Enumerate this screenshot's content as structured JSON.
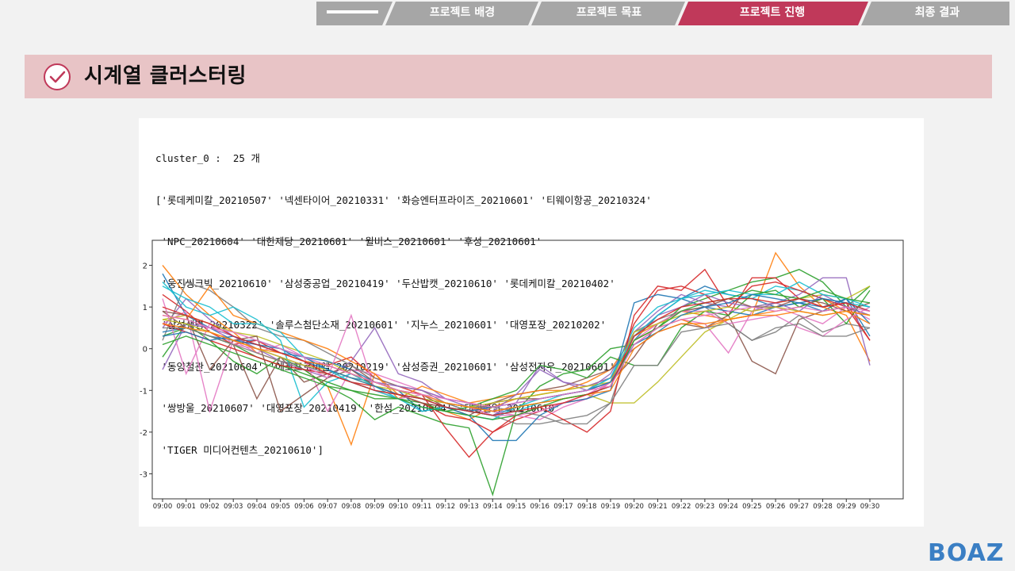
{
  "nav": {
    "tabs": [
      {
        "label": "",
        "state": "home"
      },
      {
        "label": "프로젝트 배경",
        "state": "inactive"
      },
      {
        "label": "프로젝트 목표",
        "state": "inactive"
      },
      {
        "label": "프로젝트 진행",
        "state": "active"
      },
      {
        "label": "최종 결과",
        "state": "inactive"
      }
    ],
    "colors": {
      "inactive": "#a6a6a6",
      "active": "#c0395a"
    }
  },
  "header": {
    "title": "시계열 클러스터링",
    "icon": "check-circle-icon",
    "band_color": "#e8c4c6",
    "icon_color": "#c0395a"
  },
  "cluster": {
    "heading": "cluster_0 :  25 개",
    "members_lines": [
      "['롯데케미칼_20210507' '넥센타이어_20210331' '화승엔터프라이즈_20210601' '티웨이항공_20210324'",
      " 'NPC_20210604' '대한제당_20210601' '윌비스_20210601' '후성_20210601'",
      " '웅진씽크빅_20210610' '삼성중공업_20210419' '두산밥캣_20210610' '롯데케미칼_20210402'",
      " '삼성생명_20210322' '솔루스첨단소재_20210601' '지누스_20210601' '대영포장_20210202'",
      " '동양철관_20210604' '에코프로비엠_20210219' '삼성증권_20210601' '삼성전자우_20210601'",
      " '쌍방울_20210607' '대영포장_20210419' '한섬_20210604' '태경산업_20210610'",
      " 'TIGER 미디어컨텐츠_20210610']"
    ]
  },
  "chart_data": {
    "type": "line",
    "title": "",
    "xlabel": "",
    "ylabel": "",
    "x": [
      "09:00",
      "09:01",
      "09:02",
      "09:03",
      "09:04",
      "09:05",
      "09:06",
      "09:07",
      "09:08",
      "09:09",
      "09:10",
      "09:11",
      "09:12",
      "09:13",
      "09:14",
      "09:15",
      "09:16",
      "09:17",
      "09:18",
      "09:19",
      "09:20",
      "09:21",
      "09:22",
      "09:23",
      "09:24",
      "09:25",
      "09:26",
      "09:27",
      "09:28",
      "09:29",
      "09:30"
    ],
    "ylim": [
      -3.6,
      2.6
    ],
    "yticks": [
      -3,
      -2,
      -1,
      0,
      1,
      2
    ],
    "grid": false,
    "series": [
      {
        "color": "#1f77b4",
        "values": [
          1.8,
          0.8,
          0.5,
          0.2,
          0.2,
          0.0,
          -0.3,
          -0.5,
          -0.7,
          -0.8,
          -1.0,
          -1.2,
          -1.3,
          -1.5,
          -1.6,
          -1.4,
          -1.3,
          -1.2,
          -1.1,
          -0.9,
          0.2,
          0.8,
          1.2,
          1.5,
          1.3,
          1.2,
          1.0,
          1.1,
          0.9,
          1.2,
          0.3
        ]
      },
      {
        "color": "#ff7f0e",
        "values": [
          2.0,
          1.3,
          0.8,
          0.4,
          -0.1,
          -0.3,
          -0.5,
          -0.9,
          -2.3,
          -0.6,
          -1.1,
          -1.3,
          -1.5,
          -1.7,
          -1.4,
          -1.2,
          -1.1,
          -1.0,
          -0.8,
          -0.5,
          0.3,
          0.6,
          0.9,
          0.8,
          0.7,
          0.8,
          2.3,
          1.5,
          1.0,
          0.8,
          -0.3
        ]
      },
      {
        "color": "#2ca02c",
        "values": [
          -0.2,
          0.6,
          0.2,
          -0.3,
          -0.6,
          -0.2,
          -0.5,
          -0.9,
          -1.2,
          -1.7,
          -1.4,
          -1.6,
          -1.8,
          -1.9,
          -3.5,
          -1.5,
          -0.9,
          -0.6,
          -0.5,
          0.0,
          0.1,
          0.5,
          1.0,
          1.2,
          1.4,
          1.6,
          1.7,
          1.9,
          1.6,
          1.0,
          1.5
        ]
      },
      {
        "color": "#d62728",
        "values": [
          1.3,
          0.9,
          0.4,
          0.1,
          0.2,
          -0.1,
          -0.3,
          -0.4,
          -0.2,
          -0.7,
          -0.9,
          -1.1,
          -1.9,
          -2.6,
          -2.0,
          -1.7,
          -1.5,
          -1.3,
          -1.2,
          -0.8,
          0.6,
          1.4,
          1.5,
          1.3,
          0.8,
          1.7,
          1.7,
          1.2,
          1.0,
          1.1,
          0.2
        ]
      },
      {
        "color": "#9467bd",
        "values": [
          0.5,
          1.2,
          0.7,
          0.3,
          0.0,
          -0.3,
          -0.5,
          -0.7,
          -0.3,
          0.5,
          -0.6,
          -0.8,
          -1.2,
          -1.4,
          -1.6,
          -1.3,
          -0.4,
          -0.8,
          -1.0,
          -0.6,
          0.4,
          0.9,
          1.3,
          1.1,
          1.0,
          0.9,
          1.1,
          1.3,
          1.7,
          1.7,
          -0.4
        ]
      },
      {
        "color": "#8c564b",
        "values": [
          0.9,
          0.5,
          0.3,
          0.1,
          -1.2,
          -0.2,
          -0.8,
          -0.6,
          -0.4,
          -0.8,
          -1.0,
          -1.1,
          -1.4,
          -1.6,
          -1.3,
          -1.1,
          -1.0,
          -0.9,
          -0.7,
          -0.5,
          0.0,
          0.4,
          0.6,
          0.5,
          0.8,
          -0.3,
          -0.6,
          0.7,
          0.9,
          1.0,
          0.8
        ]
      },
      {
        "color": "#e377c2",
        "values": [
          0.6,
          0.9,
          -1.5,
          0.2,
          -0.1,
          0.1,
          -0.2,
          -1.5,
          -0.5,
          -0.6,
          -0.8,
          -1.0,
          -1.2,
          -1.3,
          -1.5,
          -1.6,
          -1.7,
          -1.4,
          -1.2,
          -0.8,
          0.1,
          0.5,
          0.7,
          0.6,
          -0.1,
          0.9,
          1.0,
          0.8,
          0.6,
          1.0,
          0.7
        ]
      },
      {
        "color": "#7f7f7f",
        "values": [
          0.2,
          1.6,
          1.4,
          1.0,
          0.5,
          0.3,
          0.2,
          -0.1,
          -0.4,
          -0.7,
          -0.9,
          -1.0,
          -1.3,
          -1.5,
          -1.6,
          -1.8,
          -1.8,
          -1.7,
          -1.6,
          -1.3,
          0.4,
          0.7,
          0.9,
          1.0,
          0.6,
          0.2,
          0.4,
          0.8,
          0.4,
          0.6,
          0.5
        ]
      },
      {
        "color": "#bcbd22",
        "values": [
          0.7,
          0.8,
          0.6,
          0.4,
          0.3,
          0.1,
          -0.1,
          -0.3,
          -0.6,
          -0.9,
          -1.1,
          -1.2,
          -1.3,
          -1.4,
          -1.5,
          -1.4,
          -1.3,
          -1.2,
          -1.1,
          -1.3,
          -1.3,
          -0.8,
          -0.2,
          0.4,
          0.7,
          1.0,
          1.1,
          1.2,
          1.3,
          1.2,
          1.5
        ]
      },
      {
        "color": "#17becf",
        "values": [
          1.6,
          1.0,
          0.8,
          1.0,
          0.7,
          0.2,
          -1.4,
          -0.8,
          -0.6,
          -0.9,
          -1.2,
          -1.4,
          -1.5,
          -1.6,
          -1.7,
          -1.4,
          -1.2,
          -1.1,
          -1.0,
          -0.7,
          0.5,
          1.0,
          1.2,
          1.4,
          1.3,
          1.2,
          1.5,
          1.4,
          1.2,
          1.1,
          1.0
        ]
      },
      {
        "color": "#1f77b4",
        "values": [
          0.4,
          0.5,
          0.3,
          0.2,
          0.1,
          0.0,
          -0.2,
          -0.3,
          -0.5,
          -0.8,
          -1.0,
          -1.5,
          -1.4,
          -1.6,
          -2.2,
          -2.2,
          -1.6,
          -1.3,
          -1.2,
          -1.0,
          1.1,
          1.3,
          1.2,
          1.0,
          0.9,
          0.8,
          1.0,
          1.1,
          1.0,
          1.2,
          0.6
        ]
      },
      {
        "color": "#ff7f0e",
        "values": [
          0.8,
          0.7,
          1.5,
          0.8,
          0.6,
          0.4,
          0.2,
          0.0,
          -0.3,
          -0.6,
          -1.2,
          -0.9,
          -1.1,
          -1.3,
          -1.2,
          -1.1,
          -1.0,
          -1.0,
          -0.9,
          -0.7,
          0.2,
          0.5,
          0.7,
          0.5,
          0.7,
          0.8,
          0.9,
          1.0,
          1.2,
          0.9,
          0.6
        ]
      },
      {
        "color": "#2ca02c",
        "values": [
          0.3,
          0.5,
          0.3,
          0.1,
          -0.2,
          -0.4,
          -0.6,
          -0.8,
          -1.0,
          -1.2,
          -1.2,
          -1.3,
          -1.5,
          -1.4,
          -1.2,
          -1.0,
          -0.4,
          -0.5,
          -0.7,
          -0.2,
          -0.4,
          -0.4,
          0.5,
          0.9,
          0.8,
          1.3,
          1.4,
          1.0,
          1.2,
          0.6,
          1.4
        ]
      },
      {
        "color": "#d62728",
        "values": [
          0.6,
          0.4,
          0.2,
          0.0,
          -0.2,
          -0.4,
          -0.5,
          -0.6,
          -0.8,
          -0.9,
          -1.1,
          -1.3,
          -1.6,
          -1.7,
          -2.0,
          -1.6,
          -1.4,
          -1.7,
          -2.0,
          -1.5,
          0.8,
          1.5,
          1.4,
          1.9,
          1.0,
          1.5,
          1.6,
          1.4,
          1.2,
          1.0,
          0.2
        ]
      },
      {
        "color": "#9467bd",
        "values": [
          -0.5,
          0.6,
          0.5,
          0.3,
          0.1,
          -0.1,
          -0.3,
          -0.4,
          -0.6,
          -0.8,
          -0.9,
          -1.0,
          -1.2,
          -1.3,
          -1.5,
          -1.1,
          -0.5,
          -0.8,
          -0.9,
          -0.7,
          0.3,
          0.8,
          1.0,
          1.3,
          1.1,
          1.0,
          1.1,
          0.9,
          1.3,
          1.0,
          0.8
        ]
      },
      {
        "color": "#8c564b",
        "values": [
          0.9,
          0.8,
          -0.5,
          0.2,
          0.3,
          -1.5,
          -1.1,
          -0.7,
          -0.5,
          -0.9,
          -1.1,
          -1.3,
          -1.4,
          -1.5,
          -1.3,
          -1.2,
          -1.2,
          -1.1,
          -1.0,
          -0.8,
          -0.2,
          0.6,
          0.9,
          1.0,
          1.2,
          1.0,
          1.0,
          1.2,
          1.1,
          0.9,
          1.1
        ]
      },
      {
        "color": "#e377c2",
        "values": [
          1.2,
          -0.6,
          0.6,
          0.1,
          0.0,
          -0.2,
          -0.4,
          -0.7,
          0.8,
          -1.0,
          -1.2,
          -1.1,
          -1.3,
          -1.4,
          -1.6,
          -1.6,
          -1.5,
          -1.3,
          -1.1,
          -0.8,
          0.2,
          0.6,
          0.9,
          0.9,
          0.6,
          0.7,
          0.8,
          0.5,
          0.3,
          0.7,
          1.0
        ]
      },
      {
        "color": "#7f7f7f",
        "values": [
          0.5,
          0.5,
          0.3,
          0.1,
          -0.1,
          -0.3,
          -0.4,
          -0.6,
          -0.8,
          -1.0,
          -1.1,
          -1.2,
          -1.3,
          -1.4,
          -1.4,
          -1.5,
          -1.6,
          -1.8,
          -1.8,
          -1.3,
          -0.4,
          -0.4,
          0.4,
          0.5,
          0.6,
          0.2,
          0.5,
          0.6,
          0.3,
          0.3,
          0.5
        ]
      },
      {
        "color": "#bcbd22",
        "values": [
          0.7,
          0.6,
          0.4,
          0.2,
          0.0,
          -0.2,
          -0.4,
          -0.5,
          -0.7,
          -0.9,
          -1.0,
          -1.2,
          -1.3,
          -1.4,
          -1.3,
          -1.2,
          -1.1,
          -1.0,
          -0.9,
          -0.8,
          0.4,
          0.6,
          0.8,
          0.9,
          1.0,
          0.9,
          1.0,
          0.9,
          0.8,
          0.9,
          0.8
        ]
      },
      {
        "color": "#17becf",
        "values": [
          1.5,
          1.2,
          1.0,
          0.6,
          0.6,
          0.4,
          -0.2,
          -0.5,
          -0.8,
          -1.0,
          -1.2,
          -1.5,
          -1.4,
          -1.5,
          -1.6,
          -1.5,
          -1.3,
          -1.1,
          -1.0,
          -0.7,
          0.3,
          0.8,
          1.2,
          1.3,
          1.4,
          1.3,
          1.3,
          1.6,
          1.3,
          1.2,
          1.0
        ]
      },
      {
        "color": "#1f77b4",
        "values": [
          0.3,
          0.4,
          0.2,
          0.3,
          0.1,
          -0.1,
          -0.2,
          -0.5,
          -0.7,
          -0.9,
          -1.1,
          -1.2,
          -1.4,
          -1.5,
          -1.4,
          -1.3,
          -1.2,
          -1.1,
          -1.0,
          -0.8,
          0.1,
          0.4,
          0.8,
          1.0,
          1.1,
          1.3,
          1.2,
          1.1,
          1.2,
          1.1,
          0.9
        ]
      },
      {
        "color": "#ff7f0e",
        "values": [
          0.6,
          0.5,
          0.4,
          0.2,
          0.0,
          -0.1,
          -0.3,
          -0.4,
          -0.6,
          -0.8,
          -1.0,
          -1.1,
          -1.3,
          -1.4,
          -1.5,
          -1.4,
          -1.3,
          -1.2,
          -1.1,
          -1.0,
          0.0,
          0.4,
          0.6,
          0.6,
          0.7,
          0.8,
          0.8,
          0.9,
          0.8,
          0.9,
          0.8
        ]
      },
      {
        "color": "#2ca02c",
        "values": [
          0.1,
          0.3,
          0.1,
          -0.1,
          -0.3,
          -0.5,
          -0.7,
          -0.9,
          -1.0,
          -1.1,
          -1.2,
          -1.4,
          -1.5,
          -1.6,
          -1.7,
          -1.6,
          -1.4,
          -1.2,
          -1.1,
          -0.9,
          0.2,
          0.5,
          0.9,
          1.1,
          1.2,
          1.4,
          1.3,
          1.2,
          1.4,
          1.2,
          1.1
        ]
      },
      {
        "color": "#d62728",
        "values": [
          1.0,
          0.8,
          0.6,
          0.3,
          0.1,
          -0.1,
          -0.3,
          -0.6,
          -0.8,
          -1.0,
          -1.1,
          -1.2,
          -1.4,
          -1.5,
          -1.6,
          -1.5,
          -1.4,
          -1.3,
          -1.1,
          -0.9,
          0.3,
          0.7,
          1.0,
          1.1,
          1.2,
          1.2,
          1.1,
          1.2,
          1.0,
          1.1,
          0.9
        ]
      },
      {
        "color": "#e377c2",
        "values": [
          0.8,
          0.7,
          0.5,
          0.4,
          0.2,
          0.0,
          -0.2,
          -0.4,
          -0.6,
          -0.8,
          -1.0,
          -1.1,
          -1.2,
          -1.3,
          -1.4,
          -1.3,
          -1.2,
          -1.1,
          -1.0,
          -0.9,
          0.1,
          0.5,
          0.7,
          0.8,
          0.9,
          1.0,
          0.9,
          1.0,
          0.9,
          1.0,
          0.9
        ]
      }
    ]
  },
  "logo": {
    "text": "BOAZ",
    "color": "#3b7fc4"
  }
}
